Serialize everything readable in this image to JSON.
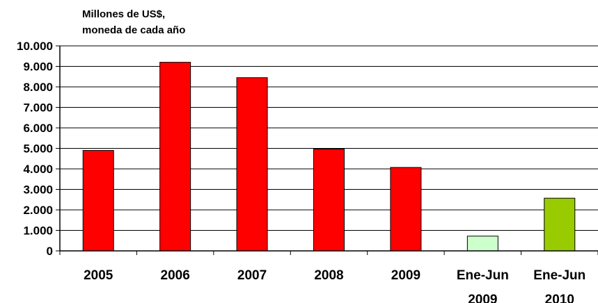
{
  "chart_data": {
    "type": "bar",
    "ylabel_lines": [
      "Millones de US$,",
      "moneda de cada año"
    ],
    "categories": [
      [
        "2005"
      ],
      [
        "2006"
      ],
      [
        "2007"
      ],
      [
        "2008"
      ],
      [
        "2009"
      ],
      [
        "Ene-Jun",
        "2009"
      ],
      [
        "Ene-Jun",
        "2010"
      ]
    ],
    "values": [
      4900,
      9200,
      8450,
      4970,
      4070,
      720,
      2570
    ],
    "bar_colors": [
      "#ff0000",
      "#ff0000",
      "#ff0000",
      "#ff0000",
      "#ff0000",
      "#ccffcc",
      "#99cc00"
    ],
    "ylim": [
      0,
      10000
    ],
    "ytick_step": 1000,
    "yticks": [
      "0",
      "1.000",
      "2.000",
      "3.000",
      "4.000",
      "5.000",
      "6.000",
      "7.000",
      "8.000",
      "9.000",
      "10.000"
    ],
    "grid": true,
    "legend": "none"
  }
}
